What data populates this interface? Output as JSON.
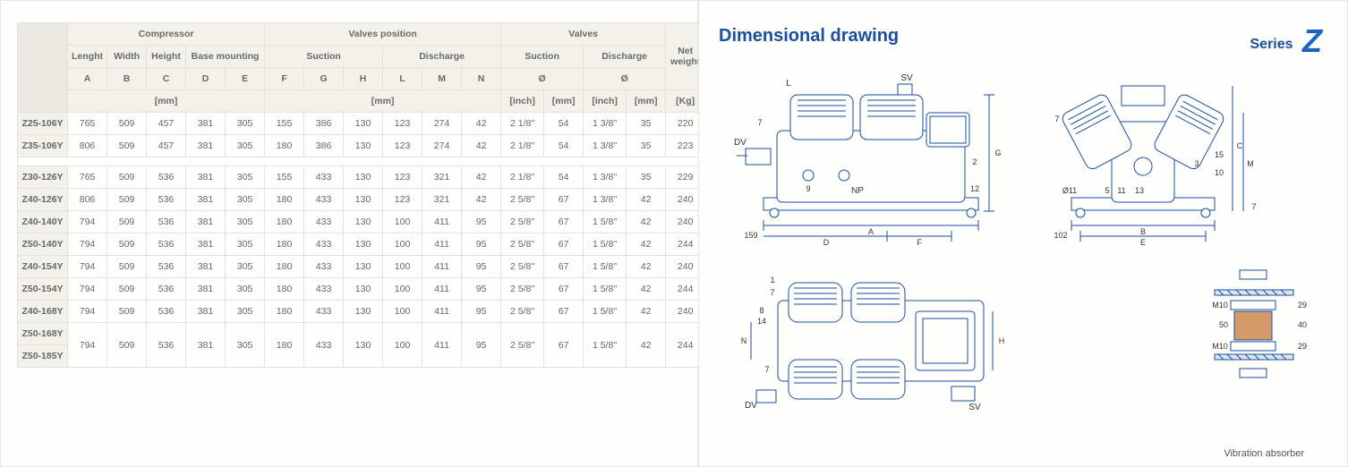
{
  "table": {
    "headers": {
      "g1": [
        "Compressor",
        "Valves position",
        "Valves"
      ],
      "g2": [
        "Lenght",
        "Width",
        "Height",
        "Base mounting",
        "Suction",
        "Discharge",
        "Suction",
        "Discharge",
        "Net weight"
      ],
      "g3": [
        "A",
        "B",
        "C",
        "D",
        "E",
        "F",
        "G",
        "H",
        "L",
        "M",
        "N",
        "Ø",
        "Ø"
      ],
      "g4": [
        "[mm]",
        "[mm]",
        "[inch]",
        "[mm]",
        "[inch]",
        "[mm]",
        "[Kg]"
      ]
    },
    "rows": [
      {
        "model": "Z25-106Y",
        "cells": [
          "765",
          "509",
          "457",
          "381",
          "305",
          "155",
          "386",
          "130",
          "123",
          "274",
          "42",
          "2 1/8''",
          "54",
          "1 3/8''",
          "35",
          "220"
        ]
      },
      {
        "model": "Z35-106Y",
        "cells": [
          "806",
          "509",
          "457",
          "381",
          "305",
          "180",
          "386",
          "130",
          "123",
          "274",
          "42",
          "2 1/8''",
          "54",
          "1 3/8''",
          "35",
          "223"
        ]
      },
      {
        "_spacer": true
      },
      {
        "model": "Z30-126Y",
        "cells": [
          "765",
          "509",
          "536",
          "381",
          "305",
          "155",
          "433",
          "130",
          "123",
          "321",
          "42",
          "2 1/8''",
          "54",
          "1 3/8''",
          "35",
          "229"
        ]
      },
      {
        "model": "Z40-126Y",
        "cells": [
          "806",
          "509",
          "536",
          "381",
          "305",
          "180",
          "433",
          "130",
          "123",
          "321",
          "42",
          "2 5/8''",
          "67",
          "1 3/8''",
          "42",
          "240"
        ]
      },
      {
        "model": "Z40-140Y",
        "cells": [
          "794",
          "509",
          "536",
          "381",
          "305",
          "180",
          "433",
          "130",
          "100",
          "411",
          "95",
          "2 5/8''",
          "67",
          "1 5/8''",
          "42",
          "240"
        ]
      },
      {
        "model": "Z50-140Y",
        "cells": [
          "794",
          "509",
          "536",
          "381",
          "305",
          "180",
          "433",
          "130",
          "100",
          "411",
          "95",
          "2 5/8''",
          "67",
          "1 5/8''",
          "42",
          "244"
        ]
      },
      {
        "model": "Z40-154Y",
        "cells": [
          "794",
          "509",
          "536",
          "381",
          "305",
          "180",
          "433",
          "130",
          "100",
          "411",
          "95",
          "2 5/8''",
          "67",
          "1 5/8''",
          "42",
          "240"
        ]
      },
      {
        "model": "Z50-154Y",
        "cells": [
          "794",
          "509",
          "536",
          "381",
          "305",
          "180",
          "433",
          "130",
          "100",
          "411",
          "95",
          "2 5/8''",
          "67",
          "1 5/8''",
          "42",
          "244"
        ]
      },
      {
        "model": "Z40-168Y",
        "cells": [
          "794",
          "509",
          "536",
          "381",
          "305",
          "180",
          "433",
          "130",
          "100",
          "411",
          "95",
          "2 5/8''",
          "67",
          "1 5/8''",
          "42",
          "240"
        ]
      },
      {
        "model": "Z50-168Y",
        "rowspan2": true,
        "cells": [
          "794",
          "509",
          "536",
          "381",
          "305",
          "180",
          "433",
          "130",
          "100",
          "411",
          "95",
          "2 5/8''",
          "67",
          "1 5/8''",
          "42",
          "244"
        ]
      },
      {
        "model": "Z50-185Y",
        "_merged": true
      }
    ],
    "style": {
      "header_bg": "#f2f2eb",
      "border_color": "#e2e2db",
      "text_color": "#666",
      "font_size": 10.5
    }
  },
  "drawing": {
    "title": "Dimensional drawing",
    "series_label": "Series",
    "series_letter": "Z",
    "labels": {
      "DV": "DV",
      "SV": "SV",
      "NP": "NP",
      "nums": [
        "1",
        "2",
        "3",
        "5",
        "7",
        "8",
        "9",
        "10",
        "11",
        "12",
        "13",
        "14",
        "15"
      ],
      "dims": {
        "A": "A",
        "B": "B",
        "C": "C",
        "D": "D",
        "E": "E",
        "F": "F",
        "G": "G",
        "H": "H",
        "L": "L",
        "M": "M",
        "N": "N"
      },
      "d159": "159",
      "d102": "102",
      "dO11": "Ø11"
    },
    "vibration": {
      "label": "Vibration absorber",
      "M10": "M10",
      "d50": "50",
      "d29": "29",
      "d40": "40"
    },
    "colors": {
      "stroke": "#1a4f9e",
      "text": "#333333",
      "bg": "#fefefc"
    }
  }
}
